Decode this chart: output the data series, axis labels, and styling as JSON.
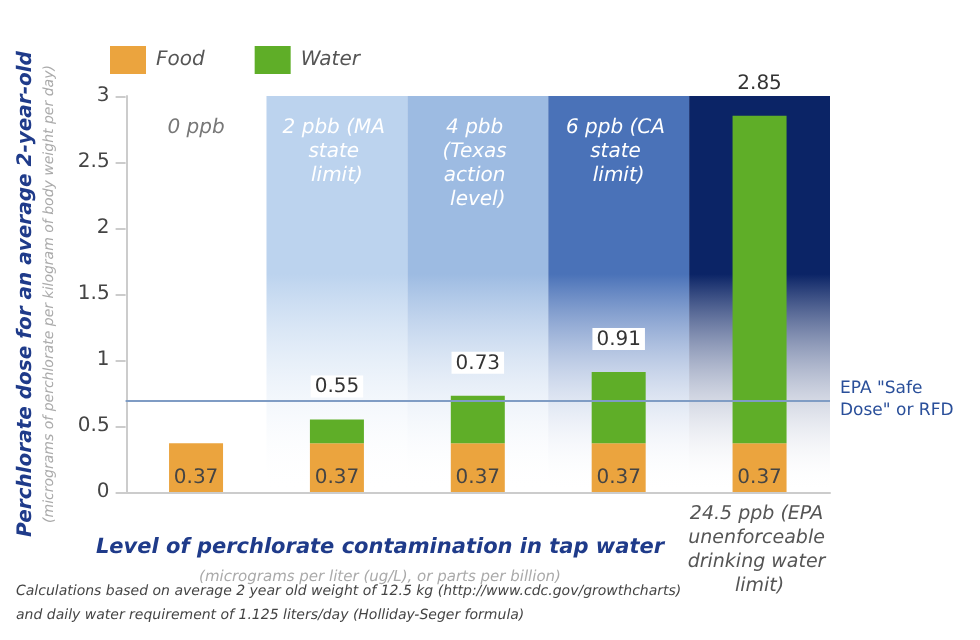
{
  "chart_data": {
    "type": "bar",
    "stacked": true,
    "categories": [
      "0 ppb",
      "2 pbb (MA state limit)",
      "4 pbb (Texas action level)",
      "6 ppb (CA state limit)",
      "24.5 ppb (EPA unenforceable drinking water limit)"
    ],
    "series": [
      {
        "name": "Food",
        "color": "#eba43e",
        "values": [
          0.37,
          0.37,
          0.37,
          0.37,
          0.37
        ],
        "value_labels": [
          "0.37",
          "0.37",
          "0.37",
          "0.37",
          "0.37"
        ]
      },
      {
        "name": "Water",
        "color": "#5fae28",
        "values": [
          null,
          0.18,
          0.36,
          0.54,
          2.48
        ]
      }
    ],
    "totals": [
      null,
      "0.55",
      "0.73",
      "0.91",
      "2.85"
    ],
    "ylim": [
      0,
      3
    ],
    "yticks": [
      0,
      0.5,
      1,
      1.5,
      2,
      2.5,
      3
    ],
    "ylabel": "Perchlorate dose for an average 2-year-old\n(micrograms of perchlorate per kilogram of body weight per day)",
    "xlabel": "Level of perchlorate contamination in tap water\n(micrograms per liter (ug/L), or parts per billion)",
    "ref_lines": [
      {
        "axis": "y",
        "value": 0.7,
        "label": "EPA \"Safe Dose\" or RFD",
        "color": "#7f9cc4"
      }
    ],
    "bands": [
      {
        "axis": "x",
        "from": "2 pbb (MA state limit)",
        "to": "2 pbb (MA state limit)",
        "color": "#bcd3ee"
      },
      {
        "axis": "x",
        "from": "4 pbb (Texas action level)",
        "to": "4 pbb (Texas action level)",
        "color": "#9dbbe2"
      },
      {
        "axis": "x",
        "from": "6 ppb (CA state limit)",
        "to": "6 ppb (CA state limit)",
        "color": "#4a72b8"
      },
      {
        "axis": "x",
        "from": "24.5 ppb (EPA unenforceable drinking water limit)",
        "to": "24.5 ppb (EPA unenforceable drinking water limit)",
        "color": "#0b2466"
      }
    ],
    "legend": "top left",
    "grid": false,
    "annotations": [
      "Calculations based on average 2 year old weight of 12.5 kg (http://www.cdc.gov/growthcharts)",
      "and daily water requirement of 1.125 liters/day (Holliday-Seger formula)"
    ]
  }
}
